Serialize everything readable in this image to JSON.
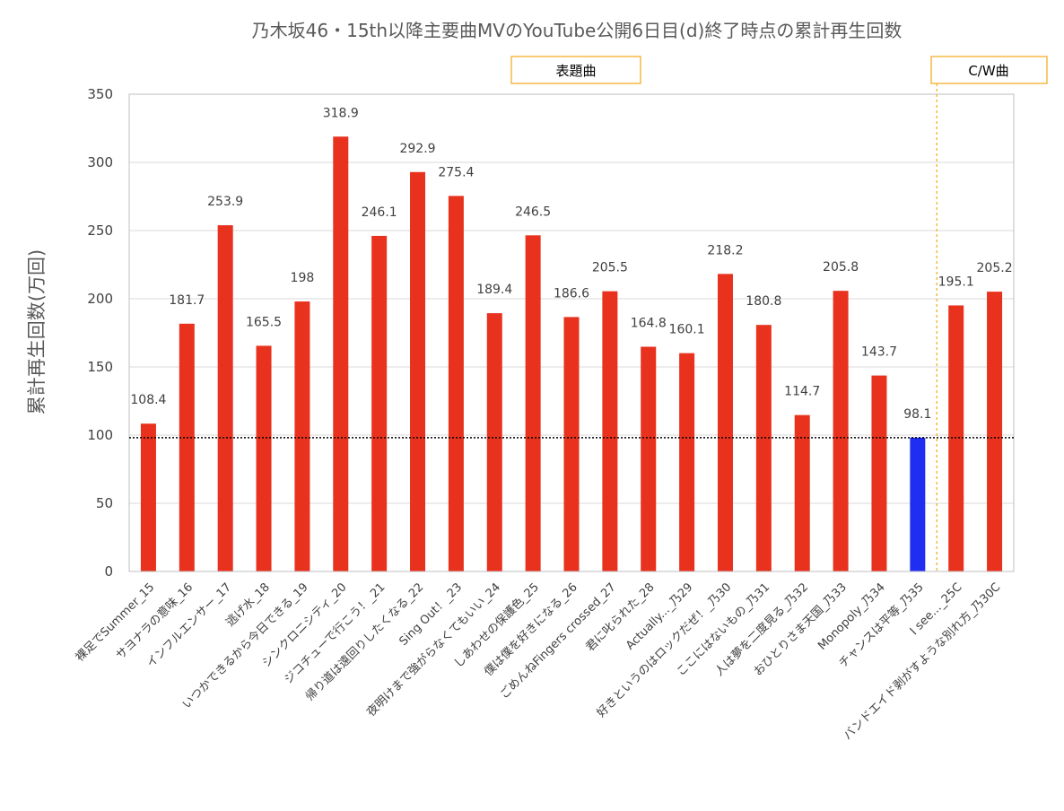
{
  "chart_data": {
    "type": "bar",
    "title": "乃木坂46・15th以降主要曲MVのYouTube公開6日目(d)終了時点の累計再生回数",
    "xlabel": "",
    "ylabel": "累計再生回数(万回)",
    "ylim": [
      0,
      350
    ],
    "yticks": [
      "0",
      "50",
      "100",
      "150",
      "200",
      "250",
      "300",
      "350"
    ],
    "grid": true,
    "reference_line": 98.1,
    "categories": [
      "裸足でSummer_15",
      "サヨナラの意味_16",
      "インフルエンサー_17",
      "逃げ水_18",
      "いつかできるから今日できる_19",
      "シンクロニシティ_20",
      "ジコチューで行こう！_21",
      "帰り道は遠回りしたくなる_22",
      "Sing Out！_23",
      "夜明けまで強がらなくてもいい_24",
      "しあわせの保護色_25",
      "僕は僕を好きになる_26",
      "ごめんねFingers crossed_27",
      "君に叱られた_28",
      "Actually..._乃29",
      "好きというのはロックだぜ！_乃30",
      "ここにはないもの_乃31",
      "人は夢を二度見る_乃32",
      "おひとりさま天国_乃33",
      "Monopoly_乃34",
      "チャンスは平等_乃35",
      "I see..._25C",
      "バンドエイド剥がすような別れ方_乃30C"
    ],
    "values": [
      108.4,
      181.7,
      253.9,
      165.5,
      198,
      318.9,
      246.1,
      292.9,
      275.4,
      189.4,
      246.5,
      186.6,
      205.5,
      164.8,
      160.1,
      218.2,
      180.8,
      114.7,
      205.8,
      143.7,
      98.1,
      195.1,
      205.2
    ],
    "value_labels": [
      "108.4",
      "181.7",
      "253.9",
      "165.5",
      "198",
      "318.9",
      "246.1",
      "292.9",
      "275.4",
      "189.4",
      "246.5",
      "186.6",
      "205.5",
      "164.8",
      "160.1",
      "218.2",
      "180.8",
      "114.7",
      "205.8",
      "143.7",
      "98.1",
      "195.1",
      "205.2"
    ],
    "highlight_index": 20,
    "divider_after_index": 20,
    "section_labels": {
      "title_tracks": "表題曲",
      "coupling": "C/W曲"
    },
    "colors": {
      "bar": "#e8321e",
      "highlight": "#1f2ef0",
      "grid": "#d9d9d9",
      "axis": "#bfbfbf",
      "reference_line": "#000000",
      "divider": "#f5b942",
      "box_border": "#f5b942"
    }
  }
}
